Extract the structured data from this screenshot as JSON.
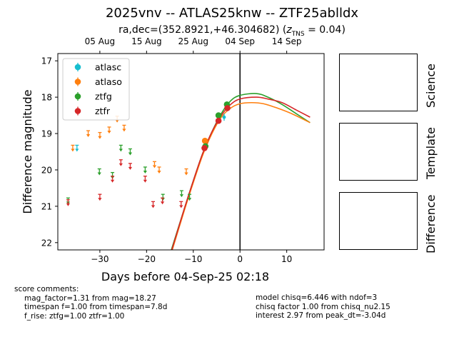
{
  "title": "2025vnv -- ATLAS25knw -- ZTF25ablldx",
  "subtitle": {
    "prefix": "ra,dec=(352.8921,+46.304682) (",
    "z_symbol": "z",
    "z_sub": "TNS",
    "z_value": " = 0.04)"
  },
  "stamps": {
    "science": "Science",
    "template": "Template",
    "difference": "Difference"
  },
  "comments_left": {
    "header": "score comments:",
    "lines": [
      "mag_factor=1.31 from mag=18.27",
      "timespan f=1.00 from timespan=7.8d",
      "f_rise: ztfg=1.00 ztfr=1.00"
    ]
  },
  "comments_right": {
    "lines": [
      "model chisq=6.446 with ndof=3",
      "chisq factor 1.00 from chisq_nu2.15",
      "interest 2.97 from peak_dt=-3.04d"
    ]
  },
  "chart_data": {
    "type": "scatter",
    "xlabel": "Days before 04-Sep-25 02:18",
    "ylabel": "Difference magnitude",
    "xlim": [
      -39,
      18
    ],
    "ylim": [
      22.2,
      16.8
    ],
    "y_inverted": true,
    "xticks": [
      -30,
      -20,
      -10,
      0,
      10
    ],
    "yticks": [
      17,
      18,
      19,
      20,
      21,
      22
    ],
    "top_axis_ticks": [
      {
        "x": -30,
        "label": "05 Aug"
      },
      {
        "x": -20,
        "label": "15 Aug"
      },
      {
        "x": -10,
        "label": "25 Aug"
      },
      {
        "x": 0,
        "label": "04 Sep"
      },
      {
        "x": 10,
        "label": "14 Sep"
      }
    ],
    "vline_x": 0,
    "legend_position": "top-left",
    "series": [
      {
        "name": "atlasc",
        "color": "#17becf",
        "detections": [
          {
            "x": -3.4,
            "y": 18.55
          }
        ],
        "upper_limits": [
          {
            "x": -34.9,
            "y": 19.4
          }
        ]
      },
      {
        "name": "atlaso",
        "color": "#ff7f0e",
        "detections": [
          {
            "x": -7.5,
            "y": 19.2
          }
        ],
        "upper_limits": [
          {
            "x": -35.8,
            "y": 19.4
          },
          {
            "x": -32.5,
            "y": 19.0
          },
          {
            "x": -30.0,
            "y": 19.05
          },
          {
            "x": -28.0,
            "y": 18.9
          },
          {
            "x": -26.3,
            "y": 18.6
          },
          {
            "x": -24.8,
            "y": 18.85
          },
          {
            "x": -18.3,
            "y": 19.85
          },
          {
            "x": -17.3,
            "y": 20.0
          },
          {
            "x": -11.5,
            "y": 20.05
          }
        ]
      },
      {
        "name": "ztfg",
        "color": "#2ca02c",
        "detections": [
          {
            "x": -7.4,
            "y": 19.35
          },
          {
            "x": -4.6,
            "y": 18.5
          },
          {
            "x": -2.8,
            "y": 18.2
          }
        ],
        "upper_limits": [
          {
            "x": -36.8,
            "y": 20.85
          },
          {
            "x": -30.1,
            "y": 20.05
          },
          {
            "x": -27.3,
            "y": 20.15
          },
          {
            "x": -25.5,
            "y": 19.4
          },
          {
            "x": -23.5,
            "y": 19.5
          },
          {
            "x": -20.3,
            "y": 20.0
          },
          {
            "x": -16.5,
            "y": 20.75
          },
          {
            "x": -12.5,
            "y": 20.65
          },
          {
            "x": -10.8,
            "y": 20.75
          }
        ]
      },
      {
        "name": "ztfr",
        "color": "#d62728",
        "detections": [
          {
            "x": -7.6,
            "y": 19.4
          },
          {
            "x": -4.6,
            "y": 18.65
          },
          {
            "x": -2.7,
            "y": 18.3
          }
        ],
        "upper_limits": [
          {
            "x": -36.8,
            "y": 20.9
          },
          {
            "x": -30.0,
            "y": 20.75
          },
          {
            "x": -27.3,
            "y": 20.25
          },
          {
            "x": -25.5,
            "y": 19.8
          },
          {
            "x": -23.5,
            "y": 19.9
          },
          {
            "x": -20.3,
            "y": 20.25
          },
          {
            "x": -18.6,
            "y": 20.95
          },
          {
            "x": -16.6,
            "y": 20.85
          },
          {
            "x": -12.6,
            "y": 20.95
          }
        ]
      }
    ],
    "model_curves": [
      {
        "band": "ztfg",
        "color": "#2ca02c",
        "x": [
          -14.7,
          -12,
          -10,
          -8,
          -6,
          -4,
          -2,
          0,
          3.5,
          6,
          9,
          12,
          15
        ],
        "y": [
          22.2,
          21.1,
          20.3,
          19.55,
          18.95,
          18.45,
          18.1,
          17.95,
          17.9,
          18.0,
          18.2,
          18.45,
          18.7
        ]
      },
      {
        "band": "atlaso",
        "color": "#ff7f0e",
        "x": [
          -14.5,
          -12,
          -10,
          -8,
          -6,
          -4,
          -2,
          0,
          2.5,
          5,
          8,
          11,
          15
        ],
        "y": [
          22.2,
          21.15,
          20.35,
          19.6,
          19.0,
          18.55,
          18.3,
          18.18,
          18.15,
          18.18,
          18.3,
          18.45,
          18.7
        ]
      },
      {
        "band": "ztfr",
        "color": "#d62728",
        "x": [
          -14.6,
          -12,
          -10,
          -8,
          -6,
          -4,
          -2,
          0,
          3.5,
          6,
          9,
          12,
          15
        ],
        "y": [
          22.2,
          21.1,
          20.3,
          19.55,
          18.95,
          18.5,
          18.2,
          18.05,
          18.0,
          18.05,
          18.15,
          18.35,
          18.55
        ]
      }
    ]
  }
}
